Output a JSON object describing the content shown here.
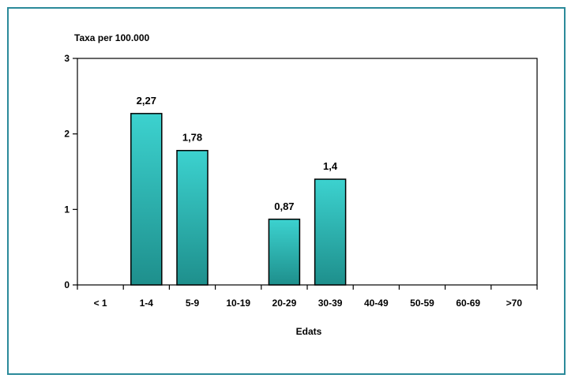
{
  "chart_data": {
    "type": "bar",
    "title": "",
    "ylabel": "Taxa per 100.000",
    "xlabel": "Edats",
    "categories": [
      "< 1",
      "1-4",
      "5-9",
      "10-19",
      "20-29",
      "30-39",
      "40-49",
      "50-59",
      "60-69",
      ">70"
    ],
    "values": [
      null,
      2.27,
      1.78,
      null,
      0.87,
      1.4,
      null,
      null,
      null,
      null
    ],
    "data_labels": [
      "",
      "2,27",
      "1,78",
      "",
      "0,87",
      "1,4",
      "",
      "",
      "",
      ""
    ],
    "ylim": [
      0,
      3
    ],
    "yticks": [
      0,
      1,
      2,
      3
    ],
    "ytick_labels": [
      "0",
      "1",
      "2",
      "3"
    ],
    "grid": false,
    "legend": "none",
    "colors": {
      "bar_top": "#3cd2cf",
      "bar_bottom": "#1e8f8c",
      "bar_edge": "#000000",
      "frame_border": "#2b8a9a"
    }
  }
}
